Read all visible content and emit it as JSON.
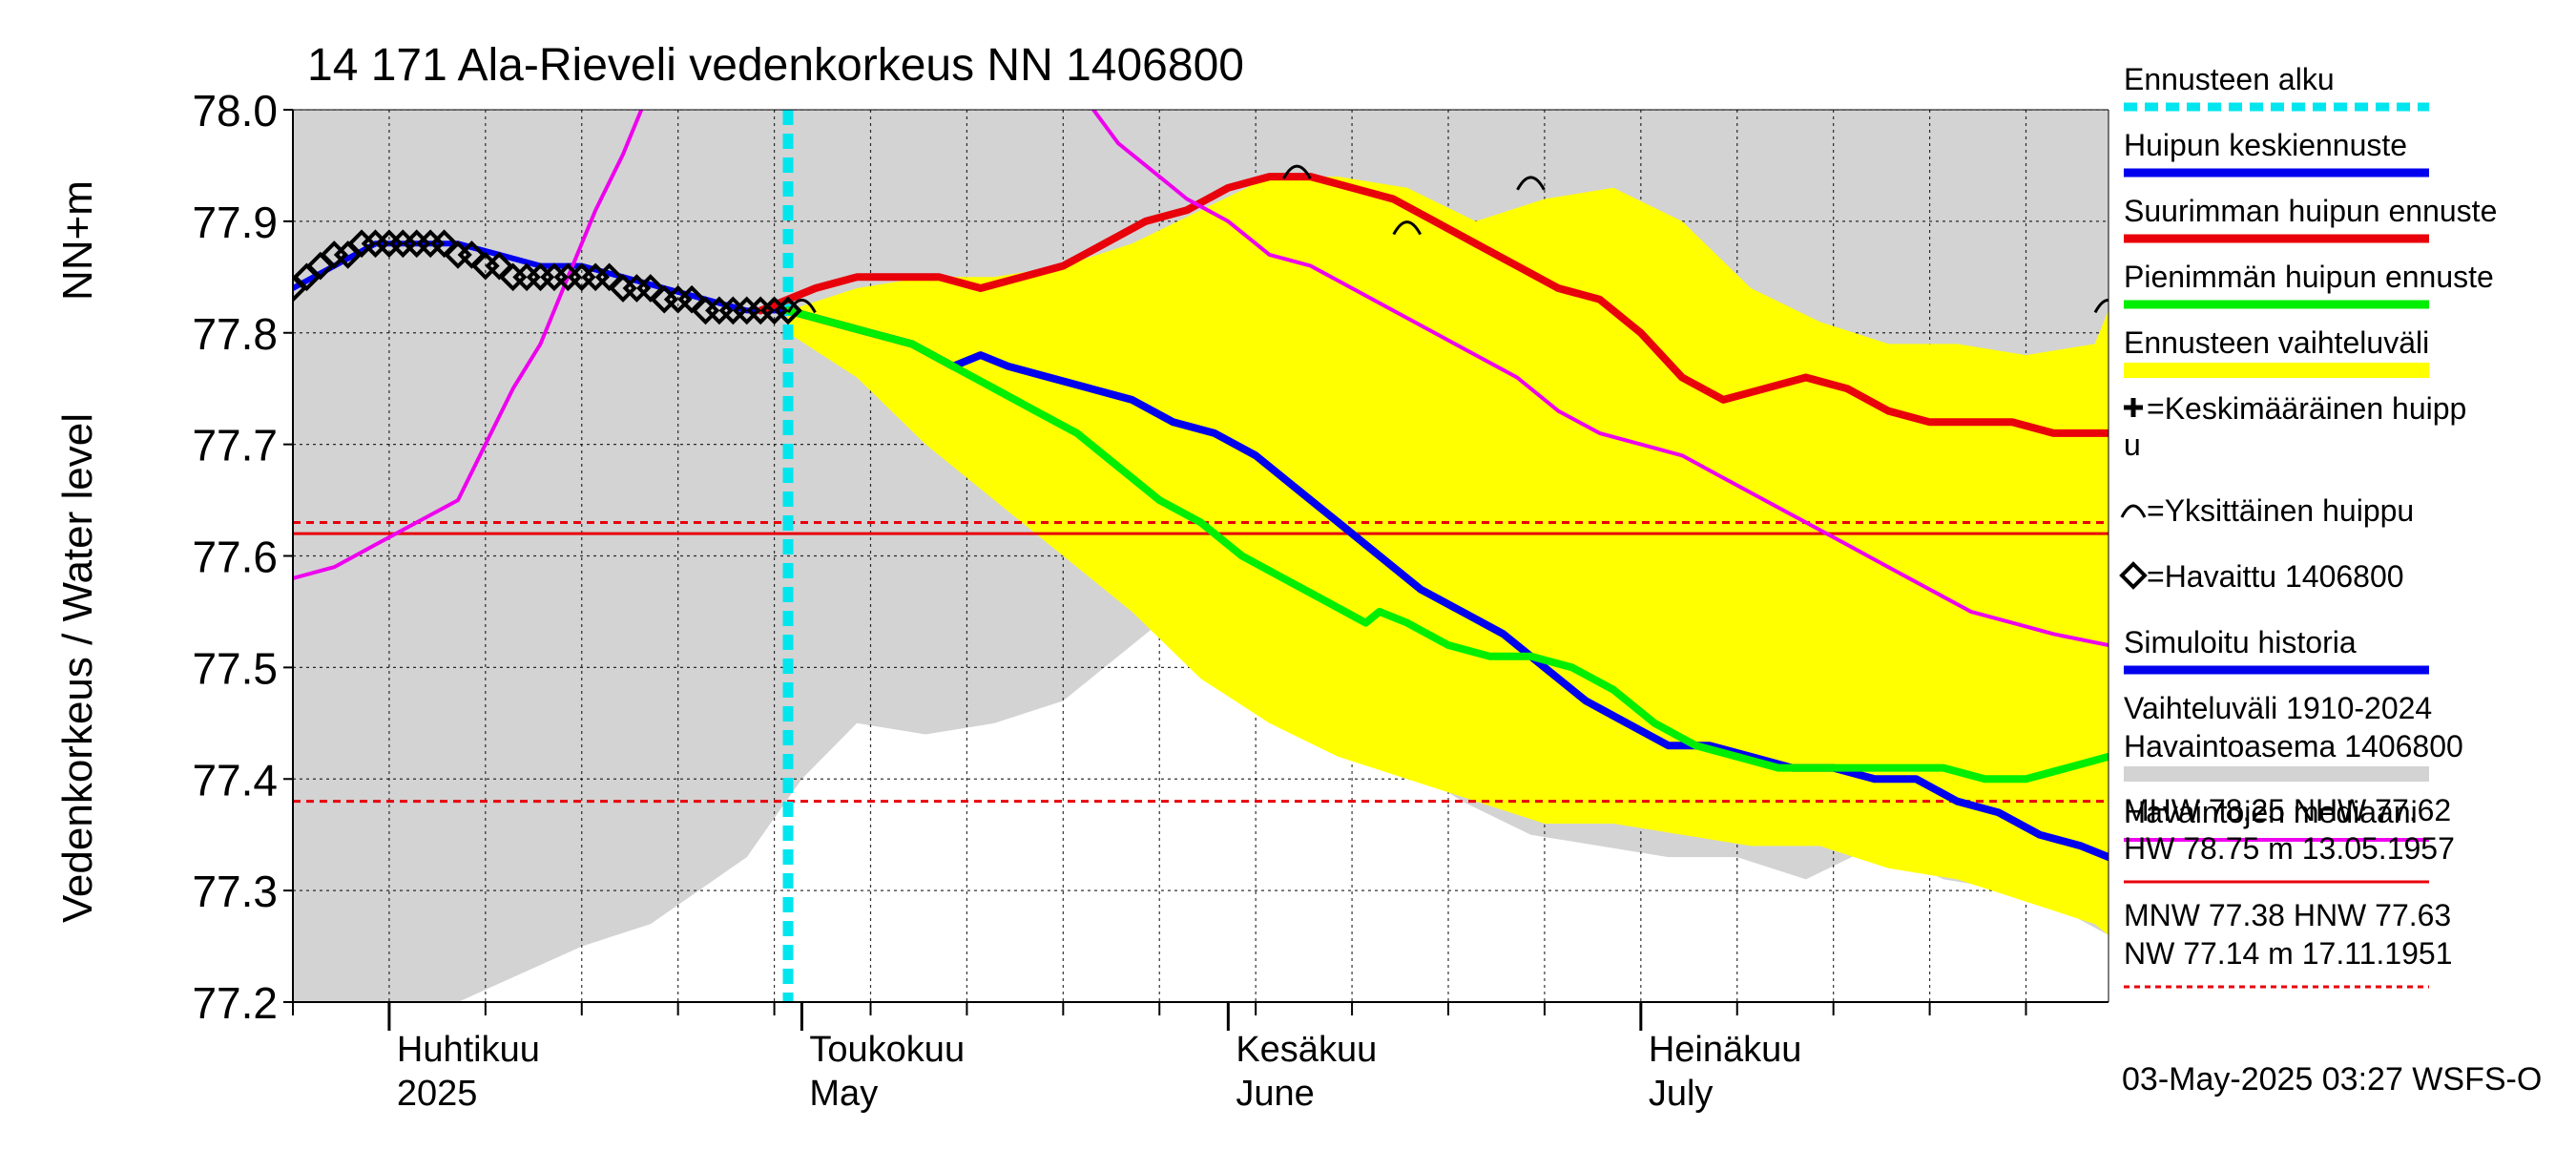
{
  "chart_data": {
    "type": "line",
    "title": "14 171 Ala-Rieveli vedenkorkeus NN 1406800",
    "ylabel": "Vedenkorkeus / Water level",
    "yunit": "NN+m",
    "ylim": [
      77.2,
      78.0
    ],
    "yticks": [
      "77.2",
      "77.3",
      "77.4",
      "77.5",
      "77.6",
      "77.7",
      "77.8",
      "77.9",
      "78.0"
    ],
    "xlim": [
      "2025-03-25",
      "2025-08-04"
    ],
    "grid": true,
    "month_labels": [
      {
        "date": "2025-04-01",
        "fi": "Huhtikuu",
        "en": "2025"
      },
      {
        "date": "2025-05-01",
        "fi": "Toukokuu",
        "en": "May"
      },
      {
        "date": "2025-06-01",
        "fi": "Kesäkuu",
        "en": "June"
      },
      {
        "date": "2025-07-01",
        "fi": "Heinäkuu",
        "en": "July"
      }
    ],
    "forecast_start": "2025-04-30",
    "reference_lines": [
      {
        "name": "HNW",
        "value": 77.63,
        "style": "dashed",
        "color": "#e8000b"
      },
      {
        "name": "NHW",
        "value": 77.62,
        "style": "solid",
        "color": "#e8000b"
      },
      {
        "name": "MNW",
        "value": 77.38,
        "style": "dashed",
        "color": "#e8000b"
      }
    ],
    "historical_range": {
      "dates": [
        "2025-03-25",
        "2025-04-06",
        "2025-04-15",
        "2025-04-20",
        "2025-04-27",
        "2025-05-01",
        "2025-05-05",
        "2025-05-10",
        "2025-05-15",
        "2025-05-20",
        "2025-05-25",
        "2025-05-29",
        "2025-06-03",
        "2025-06-08",
        "2025-06-13",
        "2025-06-18",
        "2025-06-23",
        "2025-06-28",
        "2025-07-03",
        "2025-07-08",
        "2025-07-13",
        "2025-07-18",
        "2025-07-23",
        "2025-07-28",
        "2025-08-01",
        "2025-08-04"
      ],
      "upper": [
        78.0,
        78.0,
        78.0,
        78.0,
        78.0,
        78.0,
        78.0,
        78.0,
        78.0,
        78.0,
        78.0,
        78.0,
        78.0,
        78.0,
        78.0,
        78.0,
        78.0,
        78.0,
        78.0,
        78.0,
        78.0,
        78.0,
        78.0,
        78.0,
        78.0,
        78.0
      ],
      "lower": [
        77.2,
        77.2,
        77.25,
        77.27,
        77.33,
        77.4,
        77.45,
        77.44,
        77.45,
        77.47,
        77.52,
        77.56,
        77.5,
        77.45,
        77.42,
        77.38,
        77.35,
        77.34,
        77.33,
        77.33,
        77.31,
        77.34,
        77.31,
        77.3,
        77.28,
        77.26
      ]
    },
    "observed_range_band": {
      "dates": [
        "2025-03-25",
        "2025-04-06",
        "2025-04-15",
        "2025-04-20",
        "2025-04-25",
        "2025-04-28",
        "2025-05-01",
        "2025-05-05",
        "2025-05-10",
        "2025-05-15",
        "2025-05-20",
        "2025-05-25",
        "2025-05-29",
        "2025-06-03",
        "2025-06-08",
        "2025-06-13",
        "2025-06-18",
        "2025-06-23",
        "2025-06-28",
        "2025-07-03",
        "2025-07-08",
        "2025-07-13",
        "2025-07-18",
        "2025-07-23",
        "2025-07-28",
        "2025-08-01",
        "2025-08-04"
      ],
      "upper": [
        77.95,
        77.95,
        77.95,
        77.97,
        78.0,
        78.0,
        78.0,
        78.0,
        78.0,
        78.0,
        78.0,
        78.0,
        78.0,
        78.0,
        78.0,
        78.0,
        78.0,
        78.0,
        77.95,
        77.89,
        77.85,
        77.83,
        77.79,
        77.79,
        77.79,
        77.79,
        77.79
      ],
      "lower": [
        77.2,
        77.2,
        77.22,
        77.26,
        77.32,
        77.37,
        77.43,
        77.46,
        77.44,
        77.45,
        77.45,
        77.52,
        77.55,
        77.48,
        77.44,
        77.41,
        77.38,
        77.35,
        77.33,
        77.32,
        77.32,
        77.3,
        77.32,
        77.3,
        77.28,
        77.27,
        77.27
      ]
    },
    "forecast_band": {
      "dates": [
        "2025-04-30",
        "2025-05-05",
        "2025-05-10",
        "2025-05-15",
        "2025-05-20",
        "2025-05-25",
        "2025-05-30",
        "2025-06-04",
        "2025-06-09",
        "2025-06-14",
        "2025-06-19",
        "2025-06-24",
        "2025-06-29",
        "2025-07-04",
        "2025-07-09",
        "2025-07-14",
        "2025-07-19",
        "2025-07-24",
        "2025-07-29",
        "2025-08-03",
        "2025-08-04"
      ],
      "upper": [
        77.82,
        77.84,
        77.85,
        77.85,
        77.86,
        77.88,
        77.91,
        77.94,
        77.94,
        77.93,
        77.9,
        77.92,
        77.93,
        77.9,
        77.84,
        77.81,
        77.79,
        77.79,
        77.78,
        77.79,
        77.82
      ],
      "lower": [
        77.8,
        77.76,
        77.7,
        77.65,
        77.6,
        77.55,
        77.49,
        77.45,
        77.42,
        77.4,
        77.38,
        77.36,
        77.36,
        77.35,
        77.34,
        77.34,
        77.32,
        77.31,
        77.29,
        77.27,
        77.26
      ]
    },
    "series": [
      {
        "name": "Havaittu 1406800",
        "kind": "observed",
        "color": "#000000",
        "marker": "diamond",
        "x": [
          "2025-03-25",
          "2025-03-26",
          "2025-03-27",
          "2025-03-28",
          "2025-03-29",
          "2025-03-30",
          "2025-03-31",
          "2025-04-01",
          "2025-04-02",
          "2025-04-03",
          "2025-04-04",
          "2025-04-05",
          "2025-04-06",
          "2025-04-07",
          "2025-04-08",
          "2025-04-09",
          "2025-04-10",
          "2025-04-11",
          "2025-04-12",
          "2025-04-13",
          "2025-04-14",
          "2025-04-15",
          "2025-04-16",
          "2025-04-17",
          "2025-04-18",
          "2025-04-19",
          "2025-04-20",
          "2025-04-21",
          "2025-04-22",
          "2025-04-23",
          "2025-04-24",
          "2025-04-25",
          "2025-04-26",
          "2025-04-27",
          "2025-04-28",
          "2025-04-29",
          "2025-04-30"
        ],
        "y": [
          77.84,
          77.85,
          77.86,
          77.87,
          77.87,
          77.88,
          77.88,
          77.88,
          77.88,
          77.88,
          77.88,
          77.88,
          77.87,
          77.87,
          77.86,
          77.86,
          77.85,
          77.85,
          77.85,
          77.85,
          77.85,
          77.85,
          77.85,
          77.85,
          77.84,
          77.84,
          77.84,
          77.83,
          77.83,
          77.83,
          77.82,
          77.82,
          77.82,
          77.82,
          77.82,
          77.82,
          77.82
        ]
      },
      {
        "name": "Simuloitu historia",
        "kind": "simulated",
        "color": "#0000ee",
        "x": [
          "2025-03-25",
          "2025-03-28",
          "2025-03-31",
          "2025-04-03",
          "2025-04-06",
          "2025-04-09",
          "2025-04-12",
          "2025-04-15",
          "2025-04-18",
          "2025-04-21",
          "2025-04-24",
          "2025-04-27",
          "2025-04-30"
        ],
        "y": [
          77.84,
          77.86,
          77.88,
          77.88,
          77.88,
          77.87,
          77.86,
          77.86,
          77.85,
          77.84,
          77.83,
          77.82,
          77.82
        ]
      },
      {
        "name": "Huipun keskiennuste",
        "kind": "forecast",
        "color": "#0000ee",
        "x": [
          "2025-04-30",
          "2025-05-03",
          "2025-05-06",
          "2025-05-09",
          "2025-05-12",
          "2025-05-14",
          "2025-05-16",
          "2025-05-19",
          "2025-05-22",
          "2025-05-25",
          "2025-05-28",
          "2025-05-31",
          "2025-06-03",
          "2025-06-06",
          "2025-06-09",
          "2025-06-12",
          "2025-06-15",
          "2025-06-18",
          "2025-06-21",
          "2025-06-24",
          "2025-06-27",
          "2025-06-30",
          "2025-07-03",
          "2025-07-06",
          "2025-07-09",
          "2025-07-12",
          "2025-07-15",
          "2025-07-18",
          "2025-07-21",
          "2025-07-24",
          "2025-07-27",
          "2025-07-30",
          "2025-08-02",
          "2025-08-04"
        ],
        "y": [
          77.82,
          77.81,
          77.8,
          77.79,
          77.77,
          77.78,
          77.77,
          77.76,
          77.75,
          77.74,
          77.72,
          77.71,
          77.69,
          77.66,
          77.63,
          77.6,
          77.57,
          77.55,
          77.53,
          77.5,
          77.47,
          77.45,
          77.43,
          77.43,
          77.42,
          77.41,
          77.41,
          77.4,
          77.4,
          77.38,
          77.37,
          77.35,
          77.34,
          77.33
        ]
      },
      {
        "name": "Suurimman huipun ennuste",
        "kind": "forecast",
        "color": "#e8000b",
        "x": [
          "2025-04-28",
          "2025-04-30",
          "2025-05-02",
          "2025-05-05",
          "2025-05-08",
          "2025-05-11",
          "2025-05-14",
          "2025-05-17",
          "2025-05-20",
          "2025-05-23",
          "2025-05-26",
          "2025-05-29",
          "2025-06-01",
          "2025-06-04",
          "2025-06-07",
          "2025-06-10",
          "2025-06-13",
          "2025-06-16",
          "2025-06-19",
          "2025-06-22",
          "2025-06-25",
          "2025-06-28",
          "2025-07-01",
          "2025-07-04",
          "2025-07-07",
          "2025-07-10",
          "2025-07-13",
          "2025-07-16",
          "2025-07-19",
          "2025-07-22",
          "2025-07-25",
          "2025-07-28",
          "2025-07-31",
          "2025-08-04"
        ],
        "y": [
          77.82,
          77.83,
          77.84,
          77.85,
          77.85,
          77.85,
          77.84,
          77.85,
          77.86,
          77.88,
          77.9,
          77.91,
          77.93,
          77.94,
          77.94,
          77.93,
          77.92,
          77.9,
          77.88,
          77.86,
          77.84,
          77.83,
          77.8,
          77.76,
          77.74,
          77.75,
          77.76,
          77.75,
          77.73,
          77.72,
          77.72,
          77.72,
          77.71,
          77.71
        ]
      },
      {
        "name": "Pienimmän huipun ennuste",
        "kind": "forecast",
        "color": "#00ee00",
        "x": [
          "2025-04-30",
          "2025-05-03",
          "2025-05-06",
          "2025-05-09",
          "2025-05-12",
          "2025-05-15",
          "2025-05-18",
          "2025-05-21",
          "2025-05-24",
          "2025-05-27",
          "2025-05-30",
          "2025-06-02",
          "2025-06-05",
          "2025-06-08",
          "2025-06-11",
          "2025-06-12",
          "2025-06-14",
          "2025-06-17",
          "2025-06-20",
          "2025-06-23",
          "2025-06-26",
          "2025-06-29",
          "2025-07-02",
          "2025-07-05",
          "2025-07-08",
          "2025-07-11",
          "2025-07-14",
          "2025-07-17",
          "2025-07-20",
          "2025-07-23",
          "2025-07-26",
          "2025-07-29",
          "2025-08-01",
          "2025-08-04"
        ],
        "y": [
          77.82,
          77.81,
          77.8,
          77.79,
          77.77,
          77.75,
          77.73,
          77.71,
          77.68,
          77.65,
          77.63,
          77.6,
          77.58,
          77.56,
          77.54,
          77.55,
          77.54,
          77.52,
          77.51,
          77.51,
          77.5,
          77.48,
          77.45,
          77.43,
          77.42,
          77.41,
          77.41,
          77.41,
          77.41,
          77.41,
          77.4,
          77.4,
          77.41,
          77.42
        ]
      },
      {
        "name": "Havaintojen mediaani",
        "kind": "median",
        "color": "#ee00ee",
        "x": [
          "2025-03-25",
          "2025-03-28",
          "2025-03-31",
          "2025-04-03",
          "2025-04-06",
          "2025-04-08",
          "2025-04-10",
          "2025-04-12",
          "2025-04-14",
          "2025-04-16",
          "2025-04-18",
          "2025-04-20",
          "2025-05-21",
          "2025-05-24",
          "2025-05-27",
          "2025-05-29",
          "2025-06-01",
          "2025-06-04",
          "2025-06-07",
          "2025-06-10",
          "2025-06-13",
          "2025-06-16",
          "2025-06-19",
          "2025-06-22",
          "2025-06-25",
          "2025-06-28",
          "2025-07-01",
          "2025-07-04",
          "2025-07-07",
          "2025-07-10",
          "2025-07-13",
          "2025-07-16",
          "2025-07-19",
          "2025-07-22",
          "2025-07-25",
          "2025-07-28",
          "2025-07-31",
          "2025-08-04"
        ],
        "y": [
          77.58,
          77.59,
          77.61,
          77.63,
          77.65,
          77.7,
          77.75,
          77.79,
          77.85,
          77.91,
          77.96,
          78.02,
          78.02,
          77.97,
          77.94,
          77.92,
          77.9,
          77.87,
          77.86,
          77.84,
          77.82,
          77.8,
          77.78,
          77.76,
          77.73,
          77.71,
          77.7,
          77.69,
          77.67,
          77.65,
          77.63,
          77.61,
          77.59,
          77.57,
          77.55,
          77.54,
          77.53,
          77.52
        ]
      }
    ],
    "single_peaks": [
      {
        "date": "2025-05-01",
        "value": 77.82
      },
      {
        "date": "2025-06-06",
        "value": 77.94
      },
      {
        "date": "2025-06-14",
        "value": 77.89
      },
      {
        "date": "2025-06-23",
        "value": 77.93
      },
      {
        "date": "2025-08-04",
        "value": 77.82
      }
    ]
  },
  "legend": {
    "items": [
      {
        "label": "Ennusteen alku",
        "color": "#00e5ee",
        "style": "dashed"
      },
      {
        "label": "Huipun keskiennuste",
        "color": "#0000ee",
        "style": "line"
      },
      {
        "label": "Suurimman huipun ennuste",
        "color": "#e8000b",
        "style": "line"
      },
      {
        "label": "Pienimmän huipun ennuste",
        "color": "#00ee00",
        "style": "line"
      },
      {
        "label": "Ennusteen vaihteluväli",
        "color": "#ffff00",
        "style": "band"
      },
      {
        "label": "=Keskimääräinen huipp",
        "label2": "u",
        "symbol": "plus"
      },
      {
        "label": "=Yksittäinen huippu",
        "symbol": "arc"
      },
      {
        "label": "=Havaittu 1406800",
        "symbol": "diamond"
      },
      {
        "label": "Simuloitu historia",
        "color": "#0000ee",
        "style": "line"
      },
      {
        "label": "Vaihteluväli 1910-2024",
        "label2": " Havaintoasema 1406800",
        "color": "#d3d3d3",
        "style": "band"
      },
      {
        "label": "Havaintojen mediaani",
        "color": "#ee00ee",
        "style": "line"
      }
    ],
    "stats1": [
      "MHW  78.25 NHW  77.62",
      "HW  78.75 m 13.05.1957"
    ],
    "stats2": [
      "MNW  77.38 HNW  77.63",
      "NW  77.14 m 17.11.1951"
    ],
    "stats1_color": "#e8000b",
    "stats2_color": "#e8000b"
  },
  "footer": "03-May-2025 03:27 WSFS-O"
}
